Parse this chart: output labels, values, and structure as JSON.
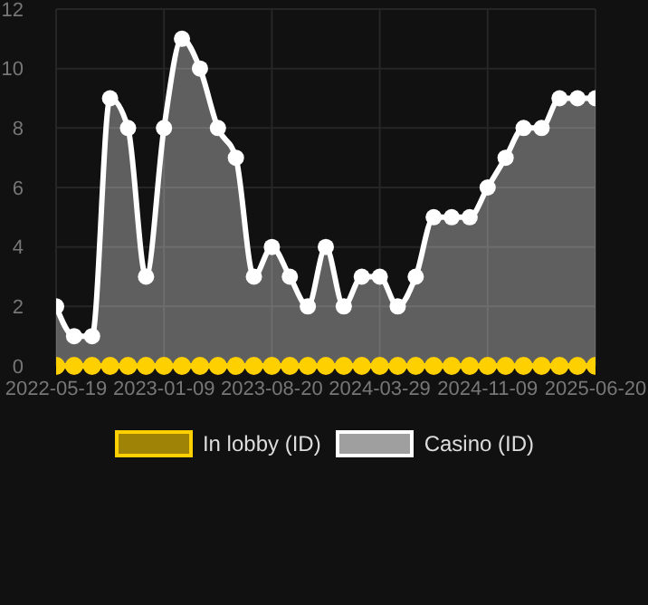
{
  "chart_data": {
    "type": "area",
    "categories": [
      "2022-05-19",
      null,
      null,
      null,
      null,
      null,
      "2023-01-09",
      null,
      null,
      null,
      null,
      null,
      "2023-08-20",
      null,
      null,
      null,
      null,
      null,
      "2024-03-29",
      null,
      null,
      null,
      null,
      null,
      "2024-11-09",
      null,
      null,
      null,
      null,
      null,
      "2025-06-20"
    ],
    "series": [
      {
        "name": "In lobby (ID)",
        "type": "line",
        "color": "#ffd000",
        "values": [
          0,
          0,
          0,
          0,
          0,
          0,
          0,
          0,
          0,
          0,
          0,
          0,
          0,
          0,
          0,
          0,
          0,
          0,
          0,
          0,
          0,
          0,
          0,
          0,
          0,
          0,
          0,
          0,
          0,
          0,
          0
        ]
      },
      {
        "name": "Casino (ID)",
        "color": "#ffffff",
        "values": [
          2,
          1,
          1,
          9,
          8,
          3,
          8,
          11,
          10,
          8,
          7,
          3,
          4,
          3,
          2,
          4,
          2,
          3,
          3,
          2,
          3,
          5,
          5,
          5,
          6,
          7,
          8,
          8,
          9,
          9,
          9
        ]
      }
    ],
    "ylim": [
      0,
      12
    ],
    "yticks": [
      0,
      2,
      4,
      6,
      8,
      10,
      12
    ],
    "grid": true,
    "legend": "bottom",
    "marker": "circle"
  }
}
